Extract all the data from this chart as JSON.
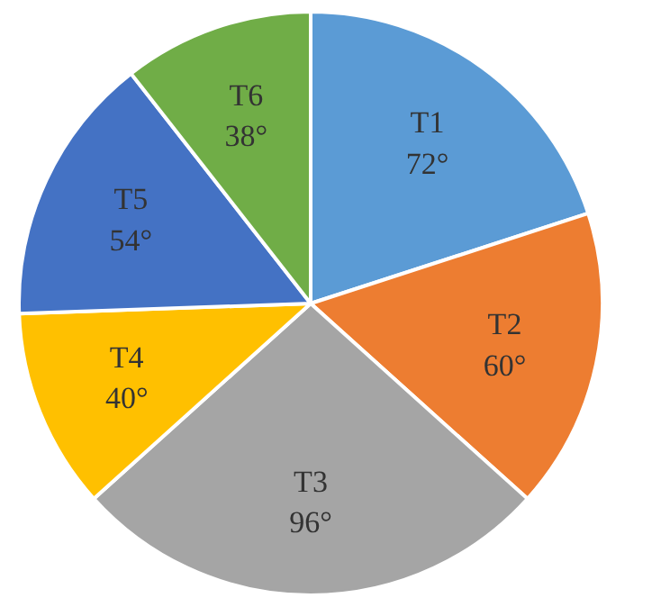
{
  "chart_data": {
    "type": "pie",
    "categories": [
      "T1",
      "T2",
      "T3",
      "T4",
      "T5",
      "T6"
    ],
    "values": [
      72,
      60,
      96,
      40,
      54,
      38
    ],
    "colors": [
      "#5b9bd5",
      "#ed7d31",
      "#a5a5a5",
      "#ffc000",
      "#4472c4",
      "#70ad47"
    ],
    "value_labels": [
      "72°",
      "60°",
      "96°",
      "40°",
      "54°",
      "38°"
    ]
  }
}
